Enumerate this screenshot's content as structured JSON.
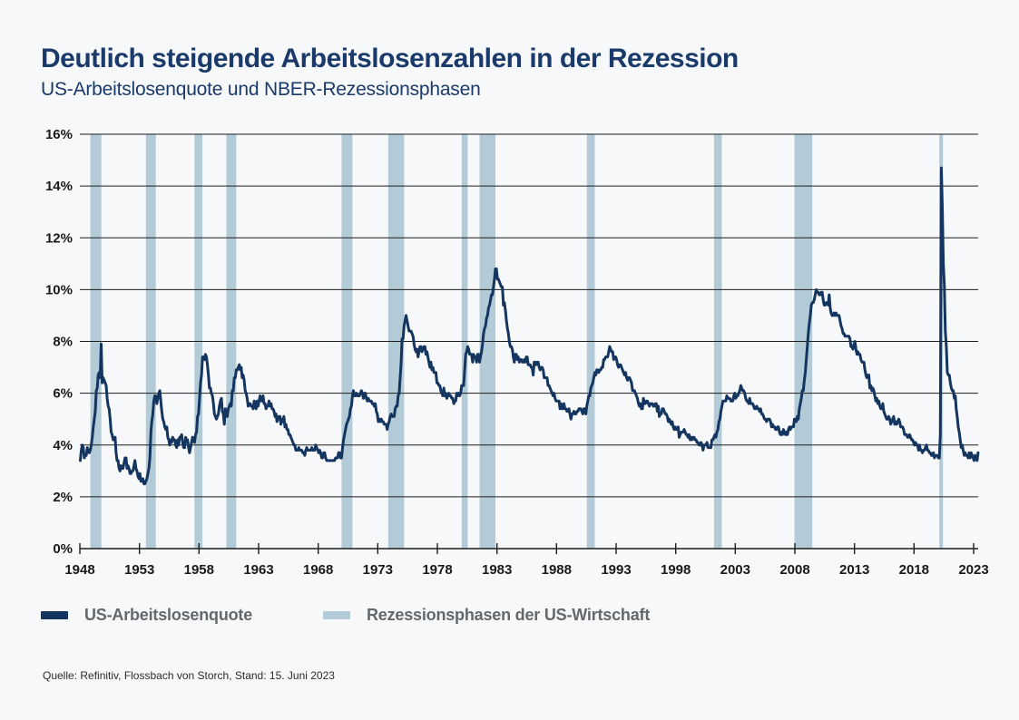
{
  "header": {
    "title": "Deutlich steigende Arbeitslosenzahlen in der Rezession",
    "subtitle": "US-Arbeitslosenquote und NBER-Rezessionsphasen"
  },
  "legend": {
    "series1_label": "US-Arbeitslosenquote",
    "series2_label": "Rezessionsphasen der US-Wirtschaft"
  },
  "footer": {
    "source": "Quelle: Refinitiv, Flossbach von Storch, Stand: 15. Juni 2023"
  },
  "colors": {
    "background": "#f7f8f9",
    "title": "#1a3a6b",
    "line": "#14355f",
    "recession_band": "#b3cbd6",
    "grid": "#1d1d1b",
    "axis_text": "#1a1a1a",
    "legend_text": "#64686b"
  },
  "chart_data": {
    "type": "line",
    "title": "Deutlich steigende Arbeitslosenzahlen in der Rezession",
    "subtitle": "US-Arbeitslosenquote und NBER-Rezessionsphasen",
    "xlabel": "",
    "ylabel": "",
    "xlim": [
      1948,
      2023.5
    ],
    "ylim": [
      0,
      16
    ],
    "y_tick_step": 2,
    "y_tick_suffix": "%",
    "x_ticks": [
      1948,
      1953,
      1958,
      1963,
      1968,
      1973,
      1978,
      1983,
      1988,
      1993,
      1998,
      2003,
      2008,
      2013,
      2018,
      2023
    ],
    "grid": "horizontal",
    "legend_position": "bottom",
    "recessions_year_ranges": [
      [
        1948.88,
        1949.8
      ],
      [
        1953.54,
        1954.37
      ],
      [
        1957.62,
        1958.29
      ],
      [
        1960.29,
        1961.12
      ],
      [
        1969.96,
        1970.87
      ],
      [
        1973.87,
        1975.21
      ],
      [
        1980.04,
        1980.54
      ],
      [
        1981.54,
        1982.87
      ],
      [
        1990.54,
        1991.21
      ],
      [
        2001.21,
        2001.87
      ],
      [
        2007.96,
        2009.46
      ],
      [
        2020.12,
        2020.3
      ]
    ],
    "series": [
      {
        "name": "US-Arbeitslosenquote",
        "unit": "percent",
        "frequency": "monthly",
        "start_year": 1948,
        "values": [
          3.4,
          3.8,
          4.0,
          3.9,
          3.5,
          3.6,
          3.6,
          3.9,
          3.8,
          3.7,
          3.8,
          4.0,
          4.3,
          4.7,
          5.0,
          5.3,
          6.1,
          6.2,
          6.7,
          6.8,
          6.6,
          7.9,
          6.4,
          6.6,
          6.5,
          6.4,
          6.3,
          5.8,
          5.5,
          5.4,
          5.0,
          4.5,
          4.4,
          4.2,
          4.2,
          4.3,
          3.7,
          3.4,
          3.4,
          3.1,
          3.0,
          3.2,
          3.1,
          3.1,
          3.3,
          3.5,
          3.5,
          3.1,
          3.2,
          3.1,
          2.9,
          2.9,
          3.0,
          3.0,
          3.2,
          3.4,
          3.1,
          3.0,
          2.8,
          2.7,
          2.9,
          2.6,
          2.6,
          2.7,
          2.5,
          2.5,
          2.6,
          2.7,
          2.9,
          3.1,
          3.5,
          4.5,
          4.9,
          5.2,
          5.7,
          5.9,
          5.9,
          5.6,
          5.8,
          6.0,
          6.1,
          5.7,
          5.3,
          5.0,
          4.9,
          4.7,
          4.6,
          4.7,
          4.3,
          4.2,
          4.0,
          4.2,
          4.1,
          4.3,
          4.2,
          4.2,
          4.0,
          3.9,
          4.2,
          4.0,
          4.3,
          4.3,
          4.4,
          4.1,
          3.9,
          3.9,
          4.3,
          4.2,
          4.2,
          3.9,
          3.7,
          3.9,
          4.1,
          4.3,
          4.2,
          4.1,
          4.4,
          4.5,
          5.1,
          5.2,
          5.8,
          6.4,
          6.7,
          7.4,
          7.4,
          7.3,
          7.5,
          7.4,
          7.1,
          6.7,
          6.2,
          6.2,
          6.0,
          5.9,
          5.6,
          5.2,
          5.1,
          5.0,
          5.1,
          5.2,
          5.5,
          5.7,
          5.8,
          5.3,
          5.2,
          4.8,
          5.4,
          5.2,
          5.1,
          5.4,
          5.5,
          5.6,
          5.5,
          6.1,
          6.1,
          6.6,
          6.6,
          6.9,
          6.9,
          7.0,
          7.1,
          6.9,
          7.0,
          6.6,
          6.7,
          6.5,
          6.1,
          6.0,
          5.8,
          5.5,
          5.6,
          5.6,
          5.5,
          5.5,
          5.4,
          5.7,
          5.6,
          5.4,
          5.7,
          5.5,
          5.7,
          5.9,
          5.7,
          5.7,
          5.9,
          5.6,
          5.6,
          5.4,
          5.5,
          5.5,
          5.7,
          5.5,
          5.6,
          5.4,
          5.4,
          5.3,
          5.1,
          5.2,
          4.9,
          5.0,
          5.1,
          5.1,
          4.8,
          5.0,
          4.9,
          5.1,
          4.7,
          4.8,
          4.6,
          4.6,
          4.4,
          4.4,
          4.3,
          4.2,
          4.1,
          4.0,
          4.0,
          3.8,
          3.8,
          3.8,
          3.9,
          3.8,
          3.8,
          3.8,
          3.7,
          3.7,
          3.6,
          3.8,
          3.9,
          3.8,
          3.8,
          3.8,
          3.8,
          3.9,
          3.8,
          3.8,
          3.8,
          4.0,
          3.9,
          3.8,
          3.7,
          3.8,
          3.7,
          3.5,
          3.5,
          3.7,
          3.7,
          3.5,
          3.4,
          3.4,
          3.4,
          3.4,
          3.4,
          3.4,
          3.4,
          3.4,
          3.4,
          3.5,
          3.5,
          3.5,
          3.7,
          3.7,
          3.5,
          3.5,
          3.9,
          4.2,
          4.4,
          4.6,
          4.8,
          4.9,
          5.0,
          5.1,
          5.4,
          5.5,
          5.9,
          6.1,
          5.9,
          5.9,
          6.0,
          5.9,
          5.9,
          5.9,
          6.0,
          6.1,
          6.0,
          5.8,
          6.0,
          6.0,
          5.8,
          5.7,
          5.8,
          5.7,
          5.7,
          5.7,
          5.6,
          5.6,
          5.5,
          5.6,
          5.3,
          5.2,
          4.9,
          5.0,
          4.9,
          5.0,
          4.9,
          4.9,
          4.8,
          4.8,
          4.8,
          4.6,
          4.8,
          4.9,
          5.1,
          5.2,
          5.1,
          5.1,
          5.1,
          5.4,
          5.5,
          5.5,
          5.9,
          6.0,
          6.6,
          7.2,
          8.1,
          8.1,
          8.6,
          8.8,
          9.0,
          8.8,
          8.6,
          8.4,
          8.4,
          8.4,
          8.3,
          8.2,
          7.9,
          7.7,
          7.6,
          7.7,
          7.4,
          7.6,
          7.8,
          7.8,
          7.6,
          7.7,
          7.8,
          7.8,
          7.5,
          7.6,
          7.4,
          7.2,
          7.0,
          7.2,
          6.9,
          7.0,
          6.8,
          6.8,
          6.8,
          6.4,
          6.4,
          6.3,
          6.3,
          6.1,
          6.0,
          5.9,
          6.2,
          5.9,
          6.0,
          5.8,
          5.9,
          6.0,
          5.9,
          5.9,
          5.8,
          5.8,
          5.6,
          5.7,
          5.7,
          6.0,
          5.9,
          6.0,
          5.9,
          6.0,
          6.3,
          6.3,
          6.3,
          6.9,
          7.5,
          7.6,
          7.8,
          7.7,
          7.5,
          7.5,
          7.5,
          7.2,
          7.5,
          7.4,
          7.4,
          7.2,
          7.5,
          7.5,
          7.2,
          7.4,
          7.6,
          7.9,
          8.3,
          8.5,
          8.6,
          8.9,
          9.0,
          9.3,
          9.4,
          9.6,
          9.8,
          9.8,
          10.1,
          10.4,
          10.8,
          10.8,
          10.4,
          10.4,
          10.3,
          10.2,
          10.1,
          10.1,
          9.4,
          9.5,
          9.2,
          8.8,
          8.5,
          8.3,
          8.0,
          7.8,
          7.8,
          7.7,
          7.4,
          7.2,
          7.5,
          7.5,
          7.3,
          7.4,
          7.2,
          7.3,
          7.3,
          7.2,
          7.2,
          7.3,
          7.2,
          7.4,
          7.4,
          7.1,
          7.1,
          7.1,
          7.0,
          7.0,
          6.7,
          7.2,
          7.2,
          7.1,
          7.2,
          7.2,
          7.0,
          6.9,
          7.0,
          7.0,
          6.9,
          6.6,
          6.6,
          6.6,
          6.6,
          6.3,
          6.3,
          6.2,
          6.1,
          6.0,
          5.9,
          6.0,
          5.8,
          5.7,
          5.7,
          5.7,
          5.7,
          5.4,
          5.6,
          5.4,
          5.4,
          5.6,
          5.4,
          5.4,
          5.3,
          5.3,
          5.4,
          5.2,
          5.0,
          5.2,
          5.2,
          5.3,
          5.2,
          5.2,
          5.3,
          5.3,
          5.4,
          5.4,
          5.4,
          5.3,
          5.2,
          5.4,
          5.4,
          5.2,
          5.5,
          5.7,
          5.9,
          5.9,
          6.2,
          6.3,
          6.4,
          6.6,
          6.8,
          6.7,
          6.9,
          6.9,
          6.8,
          6.9,
          6.9,
          7.0,
          7.0,
          7.3,
          7.3,
          7.4,
          7.4,
          7.4,
          7.6,
          7.8,
          7.7,
          7.6,
          7.6,
          7.3,
          7.4,
          7.4,
          7.3,
          7.1,
          7.0,
          7.1,
          7.1,
          7.0,
          6.9,
          6.8,
          6.7,
          6.8,
          6.6,
          6.5,
          6.6,
          6.6,
          6.5,
          6.4,
          6.1,
          6.1,
          6.1,
          6.0,
          5.9,
          5.8,
          5.6,
          5.5,
          5.6,
          5.4,
          5.4,
          5.8,
          5.6,
          5.6,
          5.7,
          5.7,
          5.6,
          5.5,
          5.6,
          5.6,
          5.6,
          5.5,
          5.5,
          5.6,
          5.6,
          5.3,
          5.5,
          5.1,
          5.2,
          5.2,
          5.4,
          5.4,
          5.3,
          5.2,
          5.2,
          5.1,
          4.9,
          5.0,
          4.9,
          4.8,
          4.9,
          4.7,
          4.6,
          4.7,
          4.6,
          4.6,
          4.7,
          4.3,
          4.4,
          4.5,
          4.5,
          4.5,
          4.6,
          4.5,
          4.4,
          4.4,
          4.3,
          4.4,
          4.2,
          4.3,
          4.2,
          4.3,
          4.3,
          4.2,
          4.2,
          4.1,
          4.1,
          4.0,
          4.0,
          4.1,
          4.0,
          3.8,
          4.0,
          4.0,
          4.0,
          4.1,
          3.9,
          3.9,
          3.9,
          3.9,
          4.2,
          4.2,
          4.3,
          4.4,
          4.3,
          4.5,
          4.6,
          4.9,
          5.0,
          5.3,
          5.5,
          5.7,
          5.7,
          5.7,
          5.7,
          5.9,
          5.8,
          5.8,
          5.8,
          5.7,
          5.7,
          5.7,
          5.9,
          6.0,
          5.8,
          5.9,
          5.9,
          6.0,
          6.1,
          6.3,
          6.2,
          6.1,
          6.1,
          6.0,
          5.8,
          5.7,
          5.7,
          5.6,
          5.8,
          5.6,
          5.6,
          5.6,
          5.5,
          5.4,
          5.4,
          5.5,
          5.4,
          5.4,
          5.3,
          5.4,
          5.2,
          5.2,
          5.1,
          5.0,
          5.0,
          4.9,
          5.0,
          5.0,
          5.0,
          4.9,
          4.7,
          4.8,
          4.7,
          4.7,
          4.6,
          4.6,
          4.7,
          4.7,
          4.5,
          4.4,
          4.5,
          4.4,
          4.6,
          4.5,
          4.4,
          4.5,
          4.4,
          4.6,
          4.7,
          4.6,
          4.7,
          4.7,
          4.7,
          5.0,
          5.0,
          4.9,
          5.1,
          5.0,
          5.4,
          5.6,
          5.8,
          6.1,
          6.1,
          6.5,
          6.8,
          7.3,
          7.8,
          8.3,
          8.7,
          9.0,
          9.4,
          9.5,
          9.5,
          9.6,
          9.8,
          10.0,
          9.9,
          9.9,
          9.8,
          9.8,
          9.9,
          9.9,
          9.6,
          9.4,
          9.4,
          9.5,
          9.5,
          9.4,
          9.8,
          9.3,
          9.1,
          9.0,
          9.0,
          9.1,
          9.0,
          9.1,
          9.0,
          9.0,
          9.0,
          8.8,
          8.6,
          8.5,
          8.3,
          8.3,
          8.2,
          8.2,
          8.2,
          8.2,
          8.2,
          8.1,
          7.8,
          7.8,
          7.7,
          7.9,
          8.0,
          7.7,
          7.5,
          7.6,
          7.5,
          7.5,
          7.3,
          7.2,
          7.2,
          7.2,
          6.9,
          6.7,
          6.6,
          6.7,
          6.7,
          6.2,
          6.3,
          6.1,
          6.2,
          6.1,
          5.9,
          5.7,
          5.8,
          5.6,
          5.7,
          5.5,
          5.4,
          5.4,
          5.6,
          5.3,
          5.2,
          5.1,
          5.0,
          5.0,
          5.1,
          5.0,
          4.8,
          4.9,
          5.0,
          5.1,
          4.8,
          4.9,
          4.8,
          4.9,
          5.0,
          4.9,
          4.7,
          4.7,
          4.7,
          4.6,
          4.4,
          4.4,
          4.4,
          4.3,
          4.3,
          4.4,
          4.3,
          4.2,
          4.2,
          4.1,
          4.0,
          4.1,
          4.0,
          4.0,
          3.8,
          4.0,
          3.8,
          3.8,
          3.7,
          3.8,
          3.8,
          3.9,
          4.0,
          3.8,
          3.8,
          3.7,
          3.7,
          3.6,
          3.6,
          3.7,
          3.5,
          3.6,
          3.6,
          3.6,
          3.5,
          3.5,
          4.4,
          14.7,
          13.2,
          11.0,
          10.2,
          8.4,
          7.8,
          6.8,
          6.7,
          6.7,
          6.4,
          6.2,
          6.1,
          6.1,
          5.8,
          5.9,
          5.4,
          5.1,
          4.7,
          4.5,
          4.2,
          3.9,
          4.0,
          3.8,
          3.6,
          3.7,
          3.6,
          3.6,
          3.5,
          3.7,
          3.5,
          3.7,
          3.6,
          3.5,
          3.4,
          3.6,
          3.5,
          3.4,
          3.7
        ]
      }
    ]
  }
}
